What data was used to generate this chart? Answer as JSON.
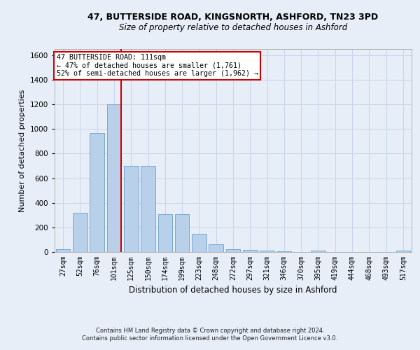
{
  "title1": "47, BUTTERSIDE ROAD, KINGSNORTH, ASHFORD, TN23 3PD",
  "title2": "Size of property relative to detached houses in Ashford",
  "xlabel": "Distribution of detached houses by size in Ashford",
  "ylabel": "Number of detached properties",
  "footnote1": "Contains HM Land Registry data © Crown copyright and database right 2024.",
  "footnote2": "Contains public sector information licensed under the Open Government Licence v3.0.",
  "annotation_line1": "47 BUTTERSIDE ROAD: 111sqm",
  "annotation_line2": "← 47% of detached houses are smaller (1,761)",
  "annotation_line3": "52% of semi-detached houses are larger (1,962) →",
  "bar_labels": [
    "27sqm",
    "52sqm",
    "76sqm",
    "101sqm",
    "125sqm",
    "150sqm",
    "174sqm",
    "199sqm",
    "223sqm",
    "248sqm",
    "272sqm",
    "297sqm",
    "321sqm",
    "346sqm",
    "370sqm",
    "395sqm",
    "419sqm",
    "444sqm",
    "468sqm",
    "493sqm",
    "517sqm"
  ],
  "bar_values": [
    25,
    320,
    970,
    1200,
    700,
    700,
    310,
    310,
    150,
    65,
    25,
    15,
    10,
    5,
    0,
    10,
    0,
    0,
    0,
    0,
    10
  ],
  "bar_color": "#b8d0ea",
  "bar_edge_color": "#6aa0cc",
  "grid_color": "#c8d4e8",
  "background_color": "#e8eef8",
  "axes_bg_color": "#e8eef8",
  "vline_color": "#cc0000",
  "vline_x_index": 3,
  "ylim": [
    0,
    1650
  ],
  "yticks": [
    0,
    200,
    400,
    600,
    800,
    1000,
    1200,
    1400,
    1600
  ],
  "annotation_box_facecolor": "#ffffff",
  "annotation_box_edgecolor": "#cc0000",
  "title1_fontsize": 9,
  "title2_fontsize": 8.5,
  "ylabel_fontsize": 8,
  "xlabel_fontsize": 8.5,
  "footnote_fontsize": 6,
  "tick_fontsize": 7,
  "ytick_fontsize": 7.5
}
